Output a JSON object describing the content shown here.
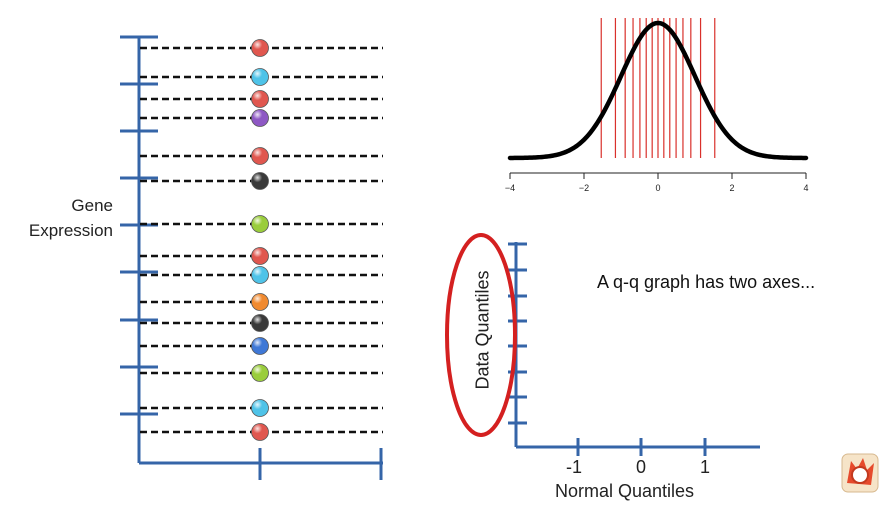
{
  "slide": {
    "background": "#ffffff",
    "caption": "A q-q graph has two axes...",
    "left_panel": {
      "axis_label_line1": "Gene",
      "axis_label_line2": "Expression",
      "axis_color": "#3565a8",
      "points": [
        {
          "color": "#e0574f"
        },
        {
          "color": "#4fc3e8"
        },
        {
          "color": "#e0574f"
        },
        {
          "color": "#8e58c4"
        },
        {
          "color": "#e0574f"
        },
        {
          "color": "#3a3a3a"
        },
        {
          "color": "#9acd3c"
        },
        {
          "color": "#e0574f"
        },
        {
          "color": "#4fc3e8"
        },
        {
          "color": "#f08a30"
        },
        {
          "color": "#3a3a3a"
        },
        {
          "color": "#3f78d6"
        },
        {
          "color": "#9acd3c"
        },
        {
          "color": "#4fc3e8"
        },
        {
          "color": "#e0574f"
        }
      ]
    },
    "normal_curve": {
      "x_ticks": [
        "−4",
        "−2",
        "0",
        "2",
        "4"
      ],
      "quantile_line_color": "#d9302b",
      "quantile_lines": 15,
      "curve_color": "#000000"
    },
    "qq_axes": {
      "x_label": "Normal Quantiles",
      "y_label": "Data Quantiles",
      "x_ticks": [
        "-1",
        "0",
        "1"
      ],
      "axis_color": "#3565a8",
      "highlight_color": "#d42020"
    }
  }
}
